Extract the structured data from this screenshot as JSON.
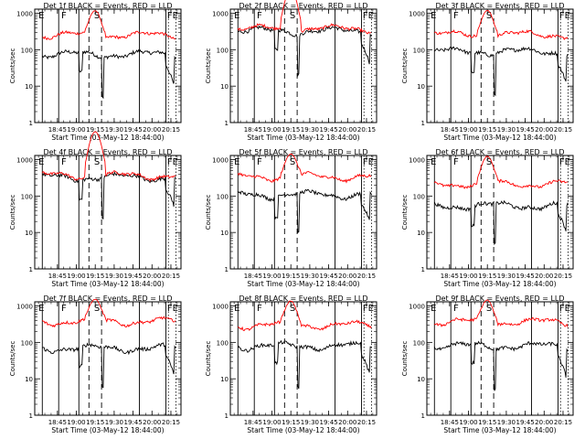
{
  "panels": [
    {
      "title": "Det 1f BLACK = Events, RED = LLD",
      "red_base": 220,
      "red_amp": 1.15,
      "red_peak": 820,
      "black_base": 75,
      "black_dip": true
    },
    {
      "title": "Det 2f BLACK = Events, RED = LLD",
      "red_base": 380,
      "red_amp": 1.0,
      "red_peak": 4200,
      "black_base": 330,
      "black_dip": true
    },
    {
      "title": "Det 3f BLACK = Events, RED = LLD",
      "red_base": 240,
      "red_amp": 1.1,
      "red_peak": 900,
      "black_base": 90,
      "black_dip": true
    },
    {
      "title": "Det 4f BLACK = Events, RED = LLD",
      "red_base": 370,
      "red_amp": 1.0,
      "red_peak": 5500,
      "black_base": 330,
      "black_dip": true
    },
    {
      "title": "Det 5f BLACK = Events, RED = LLD",
      "red_base": 300,
      "red_amp": 1.15,
      "red_peak": 950,
      "black_base": 110,
      "black_dip": true
    },
    {
      "title": "Det 6f BLACK = Events, RED = LLD",
      "red_base": 190,
      "red_amp": 1.15,
      "red_peak": 850,
      "black_base": 55,
      "black_dip": true
    },
    {
      "title": "Det 7f BLACK = Events, RED = LLD",
      "red_base": 330,
      "red_amp": 1.15,
      "red_peak": 950,
      "black_base": 70,
      "black_dip": true
    },
    {
      "title": "Det 8f BLACK = Events, RED = LLD",
      "red_base": 260,
      "red_amp": 1.15,
      "red_peak": 900,
      "black_base": 80,
      "black_dip": true
    },
    {
      "title": "Det 9f BLACK = Events, RED = LLD",
      "red_base": 320,
      "red_amp": 1.15,
      "red_peak": 950,
      "black_base": 80,
      "black_dip": true
    }
  ],
  "chart_data": {
    "type": "line",
    "x_ticks": [
      "18:45",
      "19:00",
      "19:15",
      "19:30",
      "19:45",
      "20:00",
      "20:15"
    ],
    "x_tick_minutes": [
      0,
      15,
      30,
      45,
      60,
      75,
      90
    ],
    "x_range_minutes": [
      -18,
      98
    ],
    "xlabel": "Start Time (03-May-12 18:44:00)",
    "ylabel": "Counts/sec",
    "y_scale": "log",
    "y_ticks": [
      "1",
      "10",
      "100",
      "1000"
    ],
    "ylim": [
      1,
      1300
    ],
    "region_letters": [
      "E",
      "F",
      "S",
      "FE"
    ],
    "series_colors": {
      "events": "#000000",
      "lld": "#ff0000"
    },
    "series": [
      {
        "label": "BLACK = Events",
        "color": "#000000"
      },
      {
        "label": "RED = LLD",
        "color": "#ff0000"
      }
    ],
    "vertical_markers_minutes": {
      "solid": [
        -12,
        1,
        17,
        65,
        86
      ],
      "dashed": [
        25,
        35
      ],
      "dotted": [
        88,
        94
      ]
    },
    "flare_window_minutes": [
      22,
      38
    ]
  }
}
